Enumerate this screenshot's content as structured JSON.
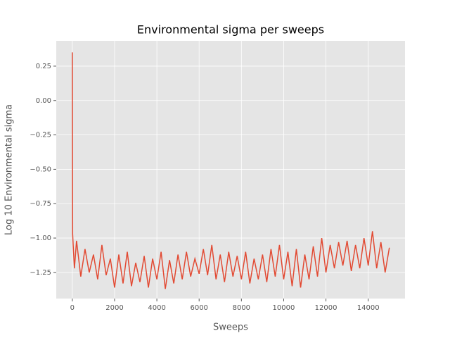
{
  "chart_data": {
    "type": "line",
    "title": "Environmental sigma per sweeps",
    "x_label": "Sweeps",
    "y_label": "Log 10 Environmental sigma",
    "xlim": [
      -760,
      15740
    ],
    "ylim": [
      -1.44,
      0.434
    ],
    "xticks": [
      0,
      2000,
      4000,
      6000,
      8000,
      10000,
      12000,
      14000
    ],
    "yticks": [
      {
        "value": -1.25,
        "label": "−1.25"
      },
      {
        "value": -1.0,
        "label": "−1.00"
      },
      {
        "value": -0.75,
        "label": "−0.75"
      },
      {
        "value": -0.5,
        "label": "−0.50"
      },
      {
        "value": -0.25,
        "label": "−0.25"
      },
      {
        "value": 0,
        "label": "0.00"
      },
      {
        "value": 0.25,
        "label": "0.25"
      }
    ],
    "grid": true,
    "x": [
      0,
      15,
      40,
      100,
      200,
      400,
      600,
      800,
      1000,
      1200,
      1400,
      1600,
      1800,
      2000,
      2200,
      2400,
      2600,
      2800,
      3000,
      3200,
      3400,
      3600,
      3800,
      4000,
      4200,
      4400,
      4600,
      4800,
      5000,
      5200,
      5400,
      5600,
      5800,
      6000,
      6200,
      6400,
      6600,
      6800,
      7000,
      7200,
      7400,
      7600,
      7800,
      8000,
      8200,
      8400,
      8600,
      8800,
      9000,
      9200,
      9400,
      9600,
      9800,
      10000,
      10200,
      10400,
      10600,
      10800,
      11000,
      11200,
      11400,
      11600,
      11800,
      12000,
      12200,
      12400,
      12600,
      12800,
      13000,
      13200,
      13400,
      13600,
      13800,
      14000,
      14200,
      14400,
      14600,
      14800,
      15000
    ],
    "series": [
      {
        "color": "#e24a33",
        "values": [
          0.35,
          -0.97,
          -1.05,
          -1.22,
          -1.02,
          -1.28,
          -1.08,
          -1.25,
          -1.12,
          -1.3,
          -1.05,
          -1.27,
          -1.15,
          -1.36,
          -1.12,
          -1.33,
          -1.1,
          -1.35,
          -1.18,
          -1.32,
          -1.13,
          -1.36,
          -1.15,
          -1.3,
          -1.1,
          -1.37,
          -1.16,
          -1.33,
          -1.12,
          -1.3,
          -1.1,
          -1.28,
          -1.15,
          -1.26,
          -1.08,
          -1.27,
          -1.05,
          -1.3,
          -1.12,
          -1.32,
          -1.1,
          -1.28,
          -1.13,
          -1.3,
          -1.1,
          -1.33,
          -1.15,
          -1.3,
          -1.12,
          -1.32,
          -1.08,
          -1.28,
          -1.05,
          -1.3,
          -1.1,
          -1.35,
          -1.08,
          -1.36,
          -1.12,
          -1.3,
          -1.06,
          -1.28,
          -1.0,
          -1.25,
          -1.05,
          -1.22,
          -1.03,
          -1.2,
          -1.02,
          -1.24,
          -1.05,
          -1.22,
          -1.0,
          -1.2,
          -0.95,
          -1.22,
          -1.03,
          -1.25,
          -1.07
        ]
      }
    ]
  }
}
